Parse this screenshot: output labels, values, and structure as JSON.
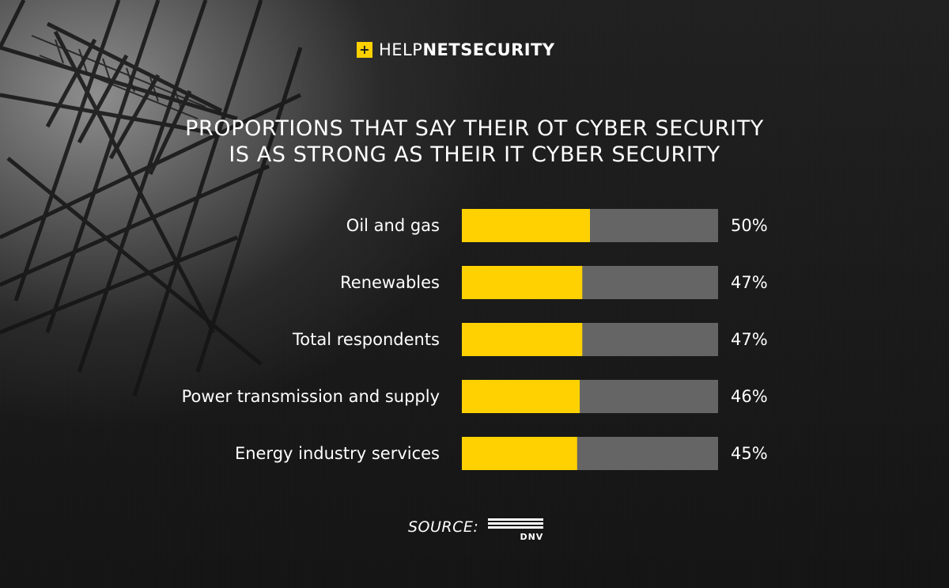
{
  "brand": {
    "light": "HELP",
    "net": "NET",
    "security": "SECURITY",
    "mark": "+"
  },
  "title": {
    "line1": "PROPORTIONS THAT SAY THEIR OT CYBER SECURITY",
    "line2": "IS AS STRONG AS THEIR IT CYBER SECURITY"
  },
  "source": {
    "label": "SOURCE:",
    "logo_text": "DNV"
  },
  "colors": {
    "fill": "#ffd100",
    "track": "#656565",
    "text": "#ffffff",
    "background": "#1b1b1b"
  },
  "chart_data": {
    "type": "bar",
    "orientation": "horizontal",
    "title": "PROPORTIONS THAT SAY THEIR OT CYBER SECURITY IS AS STRONG AS THEIR IT CYBER SECURITY",
    "categories": [
      "Oil and gas",
      "Renewables",
      "Total respondents",
      "Power transmission and supply",
      "Energy industry services"
    ],
    "values": [
      50,
      47,
      47,
      46,
      45
    ],
    "value_labels": [
      "50%",
      "47%",
      "47%",
      "46%",
      "45%"
    ],
    "unit": "%",
    "xlim": [
      0,
      100
    ],
    "xlabel": "",
    "ylabel": "",
    "grid": false,
    "legend": "none"
  }
}
